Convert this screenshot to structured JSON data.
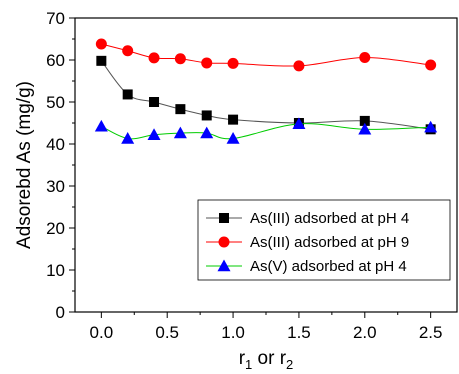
{
  "chart_data": {
    "type": "line",
    "x": [
      0.0,
      0.2,
      0.4,
      0.6,
      0.8,
      1.0,
      1.5,
      2.0,
      2.5
    ],
    "xlabel_base": "r",
    "xlabel_sub1": "1",
    "xlabel_mid": " or r",
    "xlabel_sub2": "2",
    "ylabel": "Adsorebd As (mg/g)",
    "xlim": [
      -0.2,
      2.7
    ],
    "ylim": [
      0,
      70
    ],
    "xticks": [
      0.0,
      0.5,
      1.0,
      1.5,
      2.0,
      2.5
    ],
    "xtick_labels": [
      "0.0",
      "0.5",
      "1.0",
      "1.5",
      "2.0",
      "2.5"
    ],
    "yticks": [
      0,
      10,
      20,
      30,
      40,
      50,
      60,
      70
    ],
    "ytick_labels": [
      "0",
      "10",
      "20",
      "30",
      "40",
      "50",
      "60",
      "70"
    ],
    "legend_position": "lower-right",
    "grid": false,
    "series": [
      {
        "name": "As(III) adsorbed at pH 4",
        "marker": "square",
        "color": "#000000",
        "line_color": "#555555",
        "values": [
          59.8,
          51.8,
          50.0,
          48.3,
          46.8,
          45.8,
          45.0,
          45.5,
          43.5
        ]
      },
      {
        "name": "As(III) adsorbed at pH 9",
        "marker": "circle",
        "color": "#ff0000",
        "line_color": "#ff0000",
        "values": [
          63.8,
          62.2,
          60.5,
          60.3,
          59.3,
          59.2,
          58.6,
          60.6,
          58.8
        ]
      },
      {
        "name": "As(V) adsorbed at pH 4",
        "marker": "triangle",
        "color": "#0000ff",
        "line_color": "#00cc00",
        "values": [
          44.2,
          41.3,
          42.2,
          42.6,
          42.6,
          41.3,
          44.8,
          43.5,
          44.0
        ]
      }
    ]
  }
}
